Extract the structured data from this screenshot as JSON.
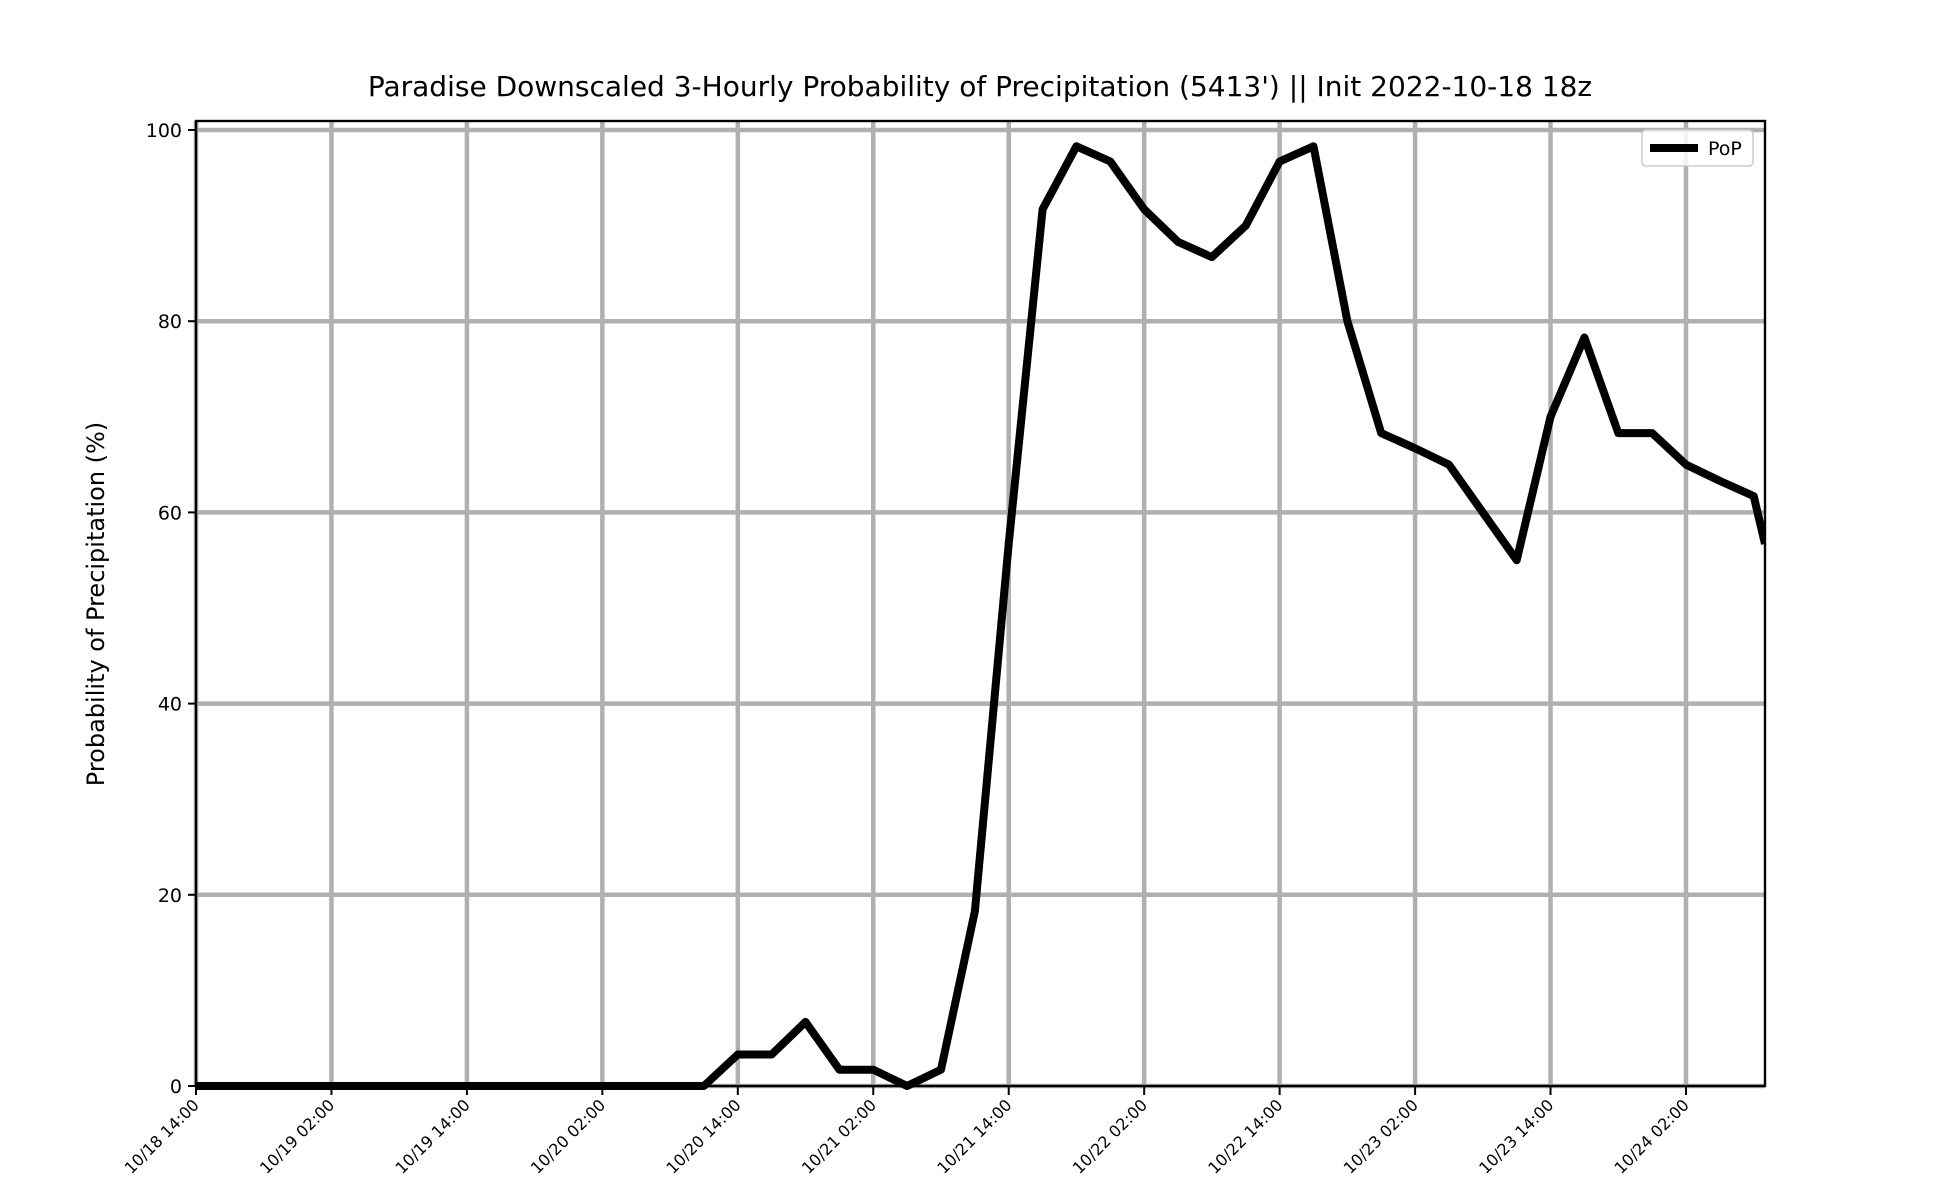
{
  "chart_data": {
    "type": "line",
    "title": "Paradise Downscaled 3-Hourly Probability of Precipitation (5413') || Init 2022-10-18 18z",
    "xlabel": "",
    "ylabel": "Probability of Precipitation (%)",
    "ylim": [
      0,
      100
    ],
    "xlim": [
      "2022-10-18 14:00",
      "2022-10-24 09:00"
    ],
    "y_ticks": [
      0,
      20,
      40,
      60,
      80,
      100
    ],
    "x_ticks": [
      "2022-10-18 14:00",
      "2022-10-19 02:00",
      "2022-10-19 14:00",
      "2022-10-20 02:00",
      "2022-10-20 14:00",
      "2022-10-21 02:00",
      "2022-10-21 14:00",
      "2022-10-22 02:00",
      "2022-10-22 14:00",
      "2022-10-23 02:00",
      "2022-10-23 14:00",
      "2022-10-24 02:00"
    ],
    "x_tick_labels": [
      "10/18 14:00",
      "10/19 02:00",
      "10/19 14:00",
      "10/20 02:00",
      "10/20 14:00",
      "10/21 02:00",
      "10/21 14:00",
      "10/22 02:00",
      "10/22 14:00",
      "10/23 02:00",
      "10/23 14:00",
      "10/24 02:00"
    ],
    "grid": true,
    "legend_position": "top-right",
    "series": [
      {
        "name": "PoP",
        "color": "#000000",
        "x": [
          "2022-10-18 14:00",
          "2022-10-18 17:00",
          "2022-10-18 20:00",
          "2022-10-18 23:00",
          "2022-10-19 02:00",
          "2022-10-19 05:00",
          "2022-10-19 08:00",
          "2022-10-19 11:00",
          "2022-10-19 14:00",
          "2022-10-19 17:00",
          "2022-10-19 20:00",
          "2022-10-19 23:00",
          "2022-10-20 02:00",
          "2022-10-20 05:00",
          "2022-10-20 08:00",
          "2022-10-20 11:00",
          "2022-10-20 14:00",
          "2022-10-20 17:00",
          "2022-10-20 20:00",
          "2022-10-20 23:00",
          "2022-10-21 02:00",
          "2022-10-21 05:00",
          "2022-10-21 08:00",
          "2022-10-21 11:00",
          "2022-10-21 14:00",
          "2022-10-21 17:00",
          "2022-10-21 20:00",
          "2022-10-21 23:00",
          "2022-10-22 02:00",
          "2022-10-22 05:00",
          "2022-10-22 08:00",
          "2022-10-22 11:00",
          "2022-10-22 14:00",
          "2022-10-22 17:00",
          "2022-10-22 20:00",
          "2022-10-22 23:00",
          "2022-10-23 02:00",
          "2022-10-23 05:00",
          "2022-10-23 08:00",
          "2022-10-23 11:00",
          "2022-10-23 14:00",
          "2022-10-23 17:00",
          "2022-10-23 20:00",
          "2022-10-23 23:00",
          "2022-10-24 02:00",
          "2022-10-24 05:00",
          "2022-10-24 08:00",
          "2022-10-24 09:00"
        ],
        "values": [
          0,
          0,
          0,
          0,
          0,
          0,
          0,
          0,
          0,
          0,
          0,
          0,
          0,
          0,
          0,
          0,
          3.3,
          3.3,
          6.7,
          1.7,
          1.7,
          0,
          1.7,
          18.3,
          56.7,
          91.7,
          98.3,
          96.7,
          91.7,
          88.3,
          86.7,
          90.0,
          96.7,
          98.3,
          80.0,
          68.3,
          66.7,
          65.0,
          60.0,
          55.0,
          70.0,
          78.3,
          68.3,
          68.3,
          65.0,
          63.3,
          61.7,
          56.7
        ]
      }
    ]
  }
}
